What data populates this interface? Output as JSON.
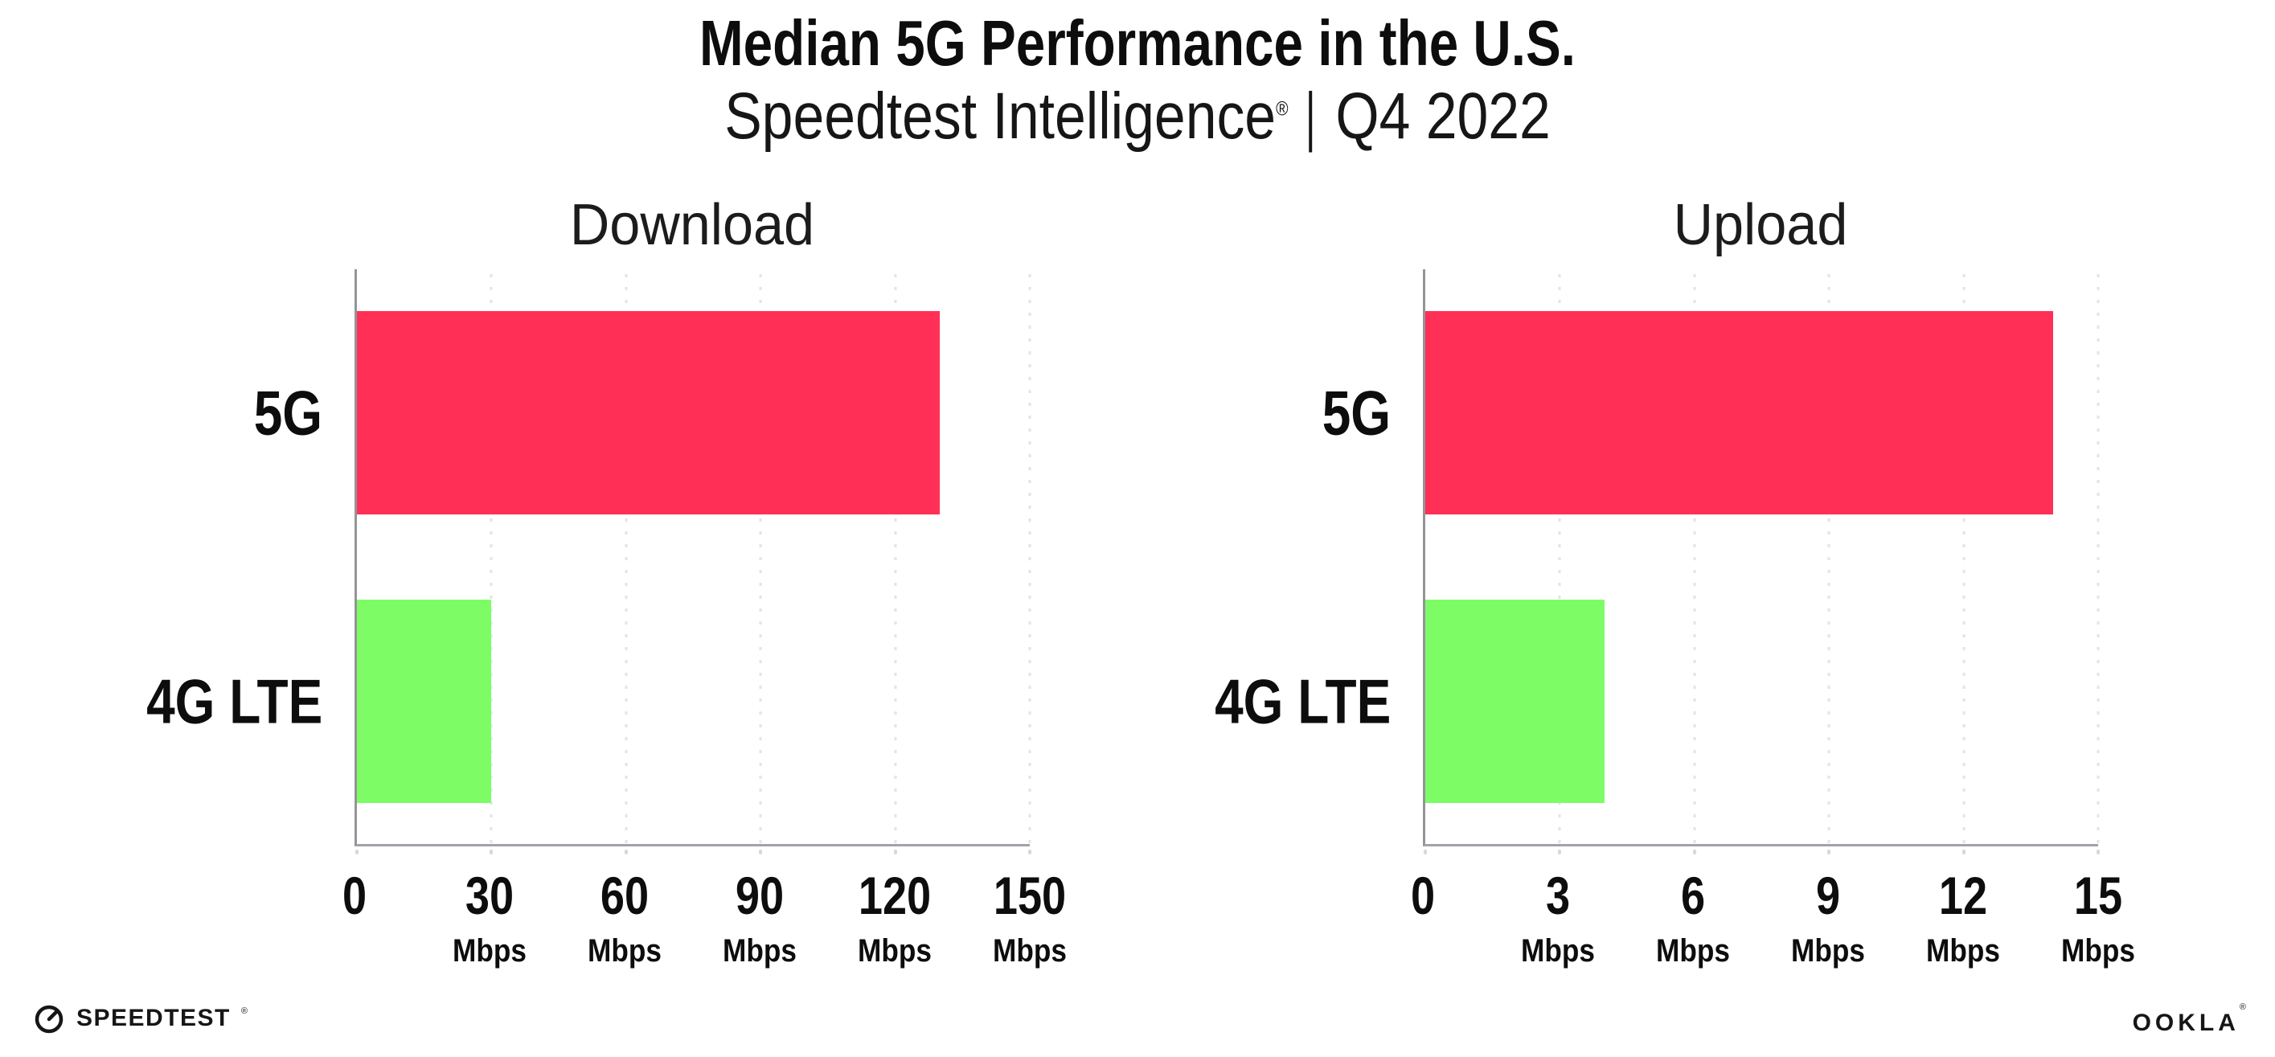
{
  "title": "Median 5G Performance in the U.S.",
  "subtitle": {
    "brand": "Speedtest Intelligence",
    "registered_mark": "®",
    "divider": "|",
    "period": "Q4 2022"
  },
  "chart_data": [
    {
      "type": "bar",
      "orientation": "horizontal",
      "title": "Download",
      "categories": [
        "5G",
        "4G LTE"
      ],
      "values": [
        130,
        30
      ],
      "unit": "Mbps",
      "xlim": [
        0,
        150
      ],
      "xticks": [
        0,
        30,
        60,
        90,
        120,
        150
      ],
      "xtick_unit_label": "Mbps",
      "grid": "vertical-dotted",
      "legend": "none",
      "bar_colors": [
        "#ff2f56",
        "#7dfc66"
      ]
    },
    {
      "type": "bar",
      "orientation": "horizontal",
      "title": "Upload",
      "categories": [
        "5G",
        "4G LTE"
      ],
      "values": [
        14,
        4
      ],
      "unit": "Mbps",
      "xlim": [
        0,
        15
      ],
      "xticks": [
        0,
        3,
        6,
        9,
        12,
        15
      ],
      "xtick_unit_label": "Mbps",
      "grid": "vertical-dotted",
      "legend": "none",
      "bar_colors": [
        "#ff2f56",
        "#7dfc66"
      ]
    }
  ],
  "colors": {
    "bar_5g": "#ff2f56",
    "bar_4g_lte": "#7dfc66",
    "axis": "#98989e",
    "gridline": "#e3e3ea",
    "tick_mark": "#d7d7e0",
    "text": "#111111",
    "background": "#ffffff"
  },
  "footer": {
    "speedtest": {
      "label": "SPEEDTEST",
      "mark": "®",
      "icon": "speedtest-gauge-icon"
    },
    "ookla": {
      "label": "OOKLA",
      "mark": "®"
    }
  }
}
